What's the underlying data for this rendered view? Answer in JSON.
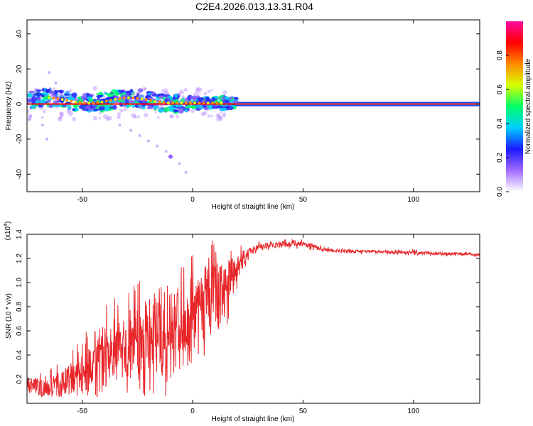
{
  "title": "C2E4.2026.013.13.31.R04",
  "colors": {
    "snr_line": "#e8262a",
    "axis": "#000000",
    "colorbar": [
      "#ffffff",
      "#a36bff",
      "#1a1aff",
      "#00cfff",
      "#00ff6a",
      "#d7ff00",
      "#ff8a00",
      "#ff0000",
      "#ff0aa0"
    ]
  },
  "chart_data": [
    {
      "type": "heatmap",
      "title": "",
      "xlabel": "Height of straight line (km)",
      "ylabel": "Frequency (Hz)",
      "xlim": [
        -75,
        130
      ],
      "ylim": [
        -50,
        48
      ],
      "x_ticks": [
        -50,
        0,
        50,
        100
      ],
      "y_ticks": [
        -40,
        -20,
        0,
        20,
        40
      ],
      "colorbar": {
        "label": "Normalized spectral amplitude",
        "range": [
          0,
          1
        ],
        "ticks": [
          "0.0",
          "0.2",
          "0.4",
          "0.6",
          "0.8"
        ],
        "tick_values": [
          0,
          0.2,
          0.4,
          0.6,
          0.8
        ]
      },
      "features": [
        {
          "name": "main-band",
          "x_range": [
            -75,
            130
          ],
          "frequency_center": 0,
          "frequency_halfwidth_far": 1.5,
          "frequency_halfwidth_near": 4
        },
        {
          "name": "descending-scatter",
          "points": [
            [
              -33,
              -12
            ],
            [
              -28,
              -15
            ],
            [
              -24,
              -18
            ],
            [
              -20,
              -21
            ],
            [
              -16,
              -24
            ],
            [
              -12,
              -27
            ],
            [
              -10,
              -30
            ],
            [
              -6,
              -34
            ],
            [
              -3,
              -39
            ]
          ]
        },
        {
          "name": "high-scatter",
          "points": [
            [
              -65,
              18
            ],
            [
              -62,
              12
            ],
            [
              -68,
              -12
            ],
            [
              -66,
              -20
            ],
            [
              -60,
              -8
            ]
          ]
        }
      ]
    },
    {
      "type": "line",
      "title": "",
      "xlabel": "Height of straight line (km)",
      "ylabel": "SNR (10 * v/v)",
      "y_scale_label": "(x10",
      "y_scale_exp": "4",
      "y_scale_close": ")",
      "xlim": [
        -75,
        130
      ],
      "ylim": [
        0,
        1.4
      ],
      "x_ticks": [
        -50,
        0,
        50,
        100
      ],
      "y_ticks": [
        0.2,
        0.4,
        0.6,
        0.8,
        1.0,
        1.2,
        1.4
      ],
      "y_tick_labels": [
        "0.2",
        "0.4",
        "0.6",
        "0.8",
        "1.0",
        "1.2",
        "1.4"
      ],
      "series": [
        {
          "name": "SNR",
          "x": [
            -75,
            -65,
            -55,
            -45,
            -35,
            -25,
            -15,
            -10,
            -5,
            0,
            5,
            10,
            15,
            20,
            25,
            30,
            40,
            50,
            60,
            70,
            80,
            90,
            100,
            110,
            120,
            130
          ],
          "values": [
            0.15,
            0.12,
            0.2,
            0.3,
            0.4,
            0.5,
            0.6,
            0.55,
            0.65,
            0.75,
            0.85,
            0.9,
            1.0,
            1.1,
            1.25,
            1.3,
            1.32,
            1.32,
            1.27,
            1.26,
            1.26,
            1.25,
            1.25,
            1.24,
            1.24,
            1.23
          ],
          "noise_amplitude": [
            0.1,
            0.12,
            0.18,
            0.3,
            0.35,
            0.4,
            0.5,
            0.5,
            0.4,
            0.35,
            0.35,
            0.4,
            0.3,
            0.15,
            0.05,
            0.03,
            0.03,
            0.03,
            0.02,
            0.015,
            0.015,
            0.015,
            0.02,
            0.015,
            0.015,
            0.015
          ]
        }
      ]
    }
  ]
}
